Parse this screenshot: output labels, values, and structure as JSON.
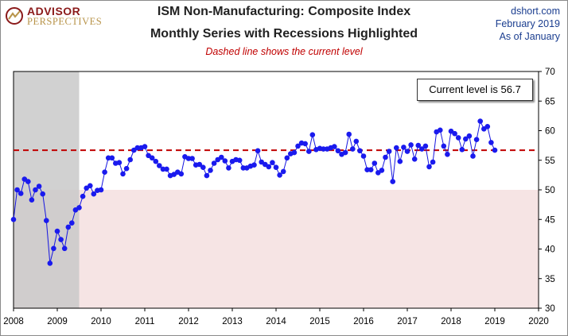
{
  "header": {
    "title_line1": "ISM Non-Manufacturing: Composite Index",
    "title_line2": "Monthly Series with Recessions Highlighted",
    "subtitle": "Dashed line shows the current level",
    "source_line1": "dshort.com",
    "source_line2": "February 2019",
    "source_line3": "As of January",
    "logo_top": "ADVISOR",
    "logo_bottom": "PERSPECTIVES"
  },
  "callout": {
    "text": "Current level is 56.7"
  },
  "colors": {
    "series": "#1515e0",
    "marker": "#1a1aee",
    "dashed": "#c00000",
    "recession": "#c9c9c9",
    "below50": "#f6e4e4",
    "title": "#222222",
    "source": "#1a3d8f"
  },
  "chart_data": {
    "type": "line",
    "title": "ISM Non-Manufacturing: Composite Index",
    "subtitle": "Monthly Series with Recessions Highlighted",
    "x_tick_labels": [
      "2008",
      "2009",
      "2010",
      "2011",
      "2012",
      "2013",
      "2014",
      "2015",
      "2016",
      "2017",
      "2018",
      "2019",
      "2020"
    ],
    "y_tick_labels": [
      "30",
      "35",
      "40",
      "45",
      "50",
      "55",
      "60",
      "65",
      "70"
    ],
    "xlim": [
      2008,
      2020
    ],
    "ylim": [
      30,
      70
    ],
    "y_axis_side": "right",
    "grid": false,
    "current_level": 56.7,
    "recession": [
      2008.0,
      2009.5
    ],
    "shaded_below": 50,
    "series": [
      {
        "x_start": "2008-01",
        "frequency": "monthly",
        "values": [
          45.0,
          50.0,
          49.4,
          51.8,
          51.4,
          48.3,
          50.0,
          50.6,
          49.3,
          44.8,
          37.6,
          40.1,
          43.0,
          41.6,
          40.1,
          43.7,
          44.4,
          46.6,
          47.0,
          48.9,
          50.3,
          50.7,
          49.3,
          49.9,
          50.0,
          53.0,
          55.4,
          55.4,
          54.5,
          54.6,
          52.7,
          53.6,
          55.1,
          56.7,
          57.1,
          57.1,
          57.3,
          55.8,
          55.4,
          54.8,
          54.1,
          53.5,
          53.5,
          52.4,
          52.6,
          53.0,
          52.7,
          55.6,
          55.3,
          55.3,
          54.2,
          54.3,
          53.8,
          52.4,
          53.3,
          54.5,
          55.1,
          55.5,
          54.9,
          53.7,
          54.8,
          55.1,
          55.0,
          53.7,
          53.7,
          54.0,
          54.2,
          56.6,
          54.7,
          54.3,
          53.9,
          54.6,
          53.8,
          52.5,
          53.1,
          55.4,
          56.1,
          56.3,
          57.4,
          57.9,
          57.8,
          56.5,
          59.3,
          56.8,
          57.0,
          56.9,
          56.9,
          57.1,
          57.3,
          56.6,
          56.0,
          56.3,
          59.4,
          56.9,
          58.2,
          56.6,
          55.7,
          53.4,
          53.4,
          54.5,
          52.9,
          53.3,
          55.5,
          56.5,
          51.4,
          57.1,
          54.8,
          57.2,
          56.5,
          57.6,
          55.2,
          57.5,
          56.9,
          57.4,
          53.9,
          54.7,
          59.8,
          60.1,
          57.4,
          56.0,
          59.9,
          59.5,
          58.8,
          56.8,
          58.6,
          59.1,
          55.7,
          58.5,
          61.6,
          60.3,
          60.7,
          58.0,
          56.7
        ]
      }
    ]
  }
}
